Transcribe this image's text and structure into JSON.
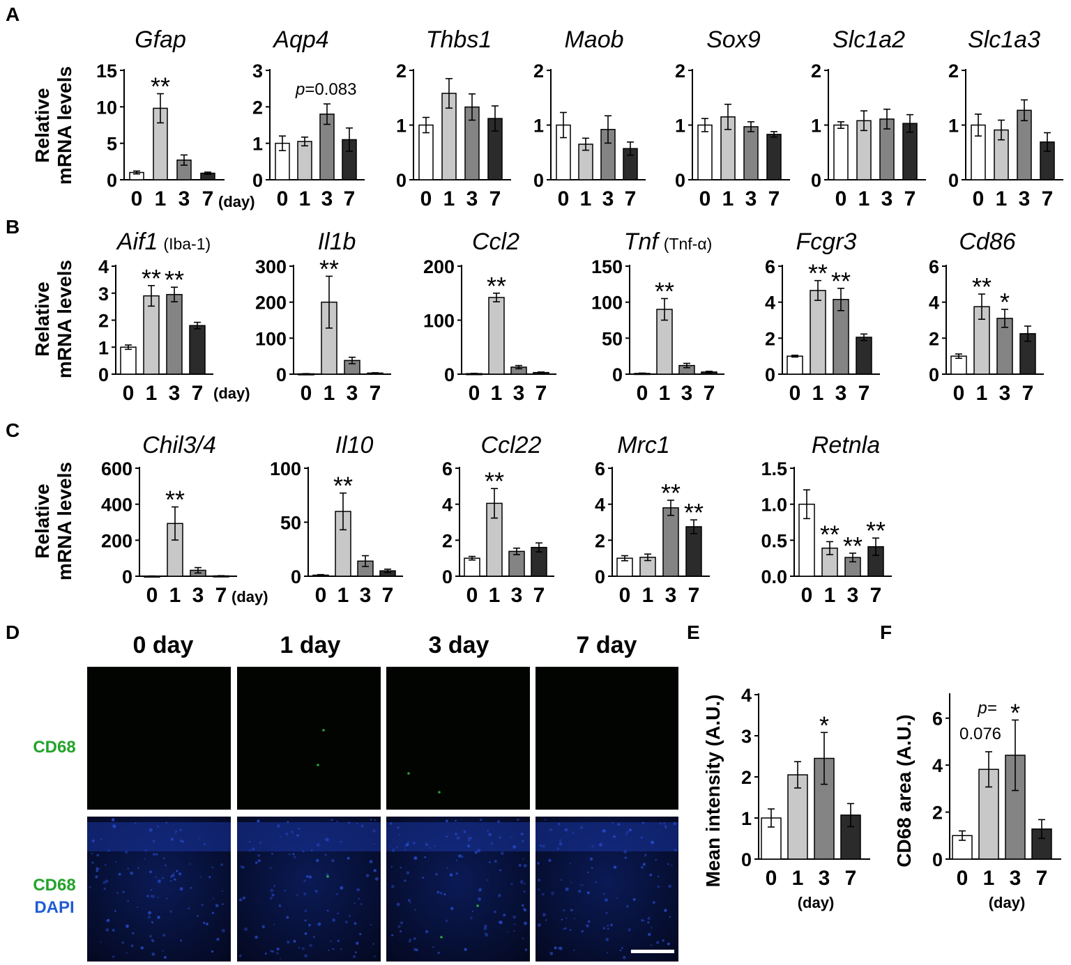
{
  "figure": {
    "panel_letters": [
      "A",
      "B",
      "C",
      "D",
      "E",
      "F"
    ],
    "relative_label": [
      "Relative",
      "mRNA levels"
    ],
    "day_unit": "(day)",
    "bar_colors": [
      "#ffffff",
      "#c8c8c8",
      "#848484",
      "#2b2b2b"
    ]
  },
  "micrographs": {
    "columns": [
      "0 day",
      "1 day",
      "3 day",
      "7 day"
    ],
    "row_top_label": "CD68",
    "row_bottom_label_1": "CD68",
    "row_bottom_label_2": "DAPI",
    "green_color": "#22a32a",
    "blue_color": "#1f5bd8"
  },
  "chart_data": [
    {
      "panel": "A",
      "title": "Gfap",
      "type": "bar",
      "categories": [
        "0",
        "1",
        "3",
        "7"
      ],
      "values": [
        1.0,
        9.8,
        2.7,
        0.9
      ],
      "errors": [
        0.2,
        2.0,
        0.7,
        0.15
      ],
      "ylim": [
        0,
        15
      ],
      "yticks": [
        0,
        5,
        10,
        15
      ],
      "annotations": [
        "",
        "**",
        "",
        ""
      ]
    },
    {
      "panel": "A",
      "title": "Aqp4",
      "type": "bar",
      "categories": [
        "0",
        "1",
        "3",
        "7"
      ],
      "values": [
        1.0,
        1.05,
        1.8,
        1.1
      ],
      "errors": [
        0.2,
        0.12,
        0.28,
        0.32
      ],
      "ylim": [
        0,
        3
      ],
      "yticks": [
        0,
        1,
        2,
        3
      ],
      "annotations": [
        "",
        "",
        "",
        ""
      ],
      "p_value": {
        "label": "p",
        "text": "=0.083"
      }
    },
    {
      "panel": "A",
      "title": "Thbs1",
      "type": "bar",
      "categories": [
        "0",
        "1",
        "3",
        "7"
      ],
      "values": [
        1.0,
        1.58,
        1.33,
        1.12
      ],
      "errors": [
        0.14,
        0.27,
        0.24,
        0.23
      ],
      "ylim": [
        0,
        2
      ],
      "yticks": [
        0,
        1,
        2
      ],
      "annotations": [
        "",
        "",
        "",
        ""
      ]
    },
    {
      "panel": "A",
      "title": "Maob",
      "type": "bar",
      "categories": [
        "0",
        "1",
        "3",
        "7"
      ],
      "values": [
        1.0,
        0.65,
        0.92,
        0.57
      ],
      "errors": [
        0.23,
        0.11,
        0.25,
        0.12
      ],
      "ylim": [
        0,
        2
      ],
      "yticks": [
        0,
        1,
        2
      ],
      "annotations": [
        "",
        "",
        "",
        ""
      ]
    },
    {
      "panel": "A",
      "title": "Sox9",
      "type": "bar",
      "categories": [
        "0",
        "1",
        "3",
        "7"
      ],
      "values": [
        1.0,
        1.15,
        0.97,
        0.83
      ],
      "errors": [
        0.12,
        0.23,
        0.09,
        0.05
      ],
      "ylim": [
        0,
        2
      ],
      "yticks": [
        0,
        1,
        2
      ],
      "annotations": [
        "",
        "",
        "",
        ""
      ]
    },
    {
      "panel": "A",
      "title": "Slc1a2",
      "type": "bar",
      "categories": [
        "0",
        "1",
        "3",
        "7"
      ],
      "values": [
        1.0,
        1.08,
        1.11,
        1.03
      ],
      "errors": [
        0.06,
        0.18,
        0.18,
        0.16
      ],
      "ylim": [
        0,
        2
      ],
      "yticks": [
        0,
        1,
        2
      ],
      "annotations": [
        "",
        "",
        "",
        ""
      ]
    },
    {
      "panel": "A",
      "title": "Slc1a3",
      "type": "bar",
      "categories": [
        "0",
        "1",
        "3",
        "7"
      ],
      "values": [
        1.0,
        0.91,
        1.27,
        0.69
      ],
      "errors": [
        0.2,
        0.18,
        0.19,
        0.17
      ],
      "ylim": [
        0,
        2
      ],
      "yticks": [
        0,
        1,
        2
      ],
      "annotations": [
        "",
        "",
        "",
        ""
      ]
    },
    {
      "panel": "B",
      "title": "Aif1",
      "title_note": "(Iba-1)",
      "type": "bar",
      "categories": [
        "0",
        "1",
        "3",
        "7"
      ],
      "values": [
        1.0,
        2.9,
        2.95,
        1.8
      ],
      "errors": [
        0.08,
        0.38,
        0.27,
        0.12
      ],
      "ylim": [
        0,
        4
      ],
      "yticks": [
        0,
        1,
        2,
        3,
        4
      ],
      "annotations": [
        "",
        "**",
        "**",
        ""
      ]
    },
    {
      "panel": "B",
      "title": "Il1b",
      "type": "bar",
      "categories": [
        "0",
        "1",
        "3",
        "7"
      ],
      "values": [
        1,
        200,
        38,
        3
      ],
      "errors": [
        0.5,
        72,
        9,
        1
      ],
      "ylim": [
        0,
        300
      ],
      "yticks": [
        0,
        100,
        200,
        300
      ],
      "annotations": [
        "",
        "**",
        "",
        ""
      ]
    },
    {
      "panel": "B",
      "title": "Ccl2",
      "type": "bar",
      "categories": [
        "0",
        "1",
        "3",
        "7"
      ],
      "values": [
        1,
        142,
        13,
        3
      ],
      "errors": [
        0.5,
        8,
        3,
        1
      ],
      "ylim": [
        0,
        200
      ],
      "yticks": [
        0,
        100,
        200
      ],
      "annotations": [
        "",
        "**",
        "",
        ""
      ]
    },
    {
      "panel": "B",
      "title": "Tnf",
      "title_note": "(Tnf-α)",
      "type": "bar",
      "categories": [
        "0",
        "1",
        "3",
        "7"
      ],
      "values": [
        1,
        90,
        12,
        3
      ],
      "errors": [
        0.5,
        15,
        3,
        1
      ],
      "ylim": [
        0,
        150
      ],
      "yticks": [
        0,
        50,
        100,
        150
      ],
      "annotations": [
        "",
        "**",
        "",
        ""
      ]
    },
    {
      "panel": "B",
      "title": "Fcgr3",
      "type": "bar",
      "categories": [
        "0",
        "1",
        "3",
        "7"
      ],
      "values": [
        1.0,
        4.65,
        4.15,
        2.05
      ],
      "errors": [
        0.05,
        0.55,
        0.62,
        0.18
      ],
      "ylim": [
        0,
        6
      ],
      "yticks": [
        0,
        2,
        4,
        6
      ],
      "annotations": [
        "",
        "**",
        "**",
        ""
      ]
    },
    {
      "panel": "B",
      "title": "Cd86",
      "type": "bar",
      "categories": [
        "0",
        "1",
        "3",
        "7"
      ],
      "values": [
        1.0,
        3.75,
        3.1,
        2.25
      ],
      "errors": [
        0.12,
        0.7,
        0.5,
        0.42
      ],
      "ylim": [
        0,
        6
      ],
      "yticks": [
        0,
        2,
        4,
        6
      ],
      "annotations": [
        "",
        "**",
        "*",
        ""
      ]
    },
    {
      "panel": "C",
      "title": "Chil3/4",
      "type": "bar",
      "categories": [
        "0",
        "1",
        "3",
        "7"
      ],
      "values": [
        1,
        293,
        33,
        2
      ],
      "errors": [
        0.5,
        92,
        15,
        1
      ],
      "ylim": [
        0,
        600
      ],
      "yticks": [
        0,
        200,
        400,
        600
      ],
      "annotations": [
        "",
        "**",
        "",
        ""
      ]
    },
    {
      "panel": "C",
      "title": "Il10",
      "type": "bar",
      "categories": [
        "0",
        "1",
        "3",
        "7"
      ],
      "values": [
        1,
        60,
        14,
        5
      ],
      "errors": [
        0.5,
        17,
        5,
        1.5
      ],
      "ylim": [
        0,
        100
      ],
      "yticks": [
        0,
        50,
        100
      ],
      "annotations": [
        "",
        "**",
        "",
        ""
      ]
    },
    {
      "panel": "C",
      "title": "Ccl22",
      "type": "bar",
      "categories": [
        "0",
        "1",
        "3",
        "7"
      ],
      "values": [
        1.0,
        4.05,
        1.38,
        1.6
      ],
      "errors": [
        0.1,
        0.82,
        0.18,
        0.25
      ],
      "ylim": [
        0,
        6
      ],
      "yticks": [
        0,
        2,
        4,
        6
      ],
      "annotations": [
        "",
        "**",
        "",
        ""
      ]
    },
    {
      "panel": "C",
      "title": "Mrc1",
      "type": "bar",
      "categories": [
        "0",
        "1",
        "3",
        "7"
      ],
      "values": [
        1.0,
        1.05,
        3.8,
        2.75
      ],
      "errors": [
        0.14,
        0.18,
        0.42,
        0.38
      ],
      "ylim": [
        0,
        6
      ],
      "yticks": [
        0,
        2,
        4,
        6
      ],
      "annotations": [
        "",
        "",
        "**",
        "**"
      ]
    },
    {
      "panel": "C",
      "title": "Retnla",
      "type": "bar",
      "categories": [
        "0",
        "1",
        "3",
        "7"
      ],
      "values": [
        1.0,
        0.39,
        0.26,
        0.41
      ],
      "errors": [
        0.2,
        0.09,
        0.06,
        0.12
      ],
      "ylim": [
        0,
        1.5
      ],
      "yticks": [
        "0.0",
        "0.5",
        "1.0",
        "1.5"
      ],
      "annotations": [
        "",
        "**",
        "**",
        "**"
      ]
    },
    {
      "panel": "E",
      "type": "bar",
      "ylabel": "Mean intensity (A.U.)",
      "xlabel": "(day)",
      "categories": [
        "0",
        "1",
        "3",
        "7"
      ],
      "values": [
        1.0,
        2.05,
        2.45,
        1.07
      ],
      "errors": [
        0.22,
        0.32,
        0.63,
        0.28
      ],
      "ylim": [
        0,
        4
      ],
      "yticks": [
        0,
        1,
        2,
        3,
        4
      ],
      "annotations": [
        "",
        "",
        "*",
        ""
      ]
    },
    {
      "panel": "F",
      "type": "bar",
      "ylabel": "CD68 area (A.U.)",
      "xlabel": "(day)",
      "categories": [
        "0",
        "1",
        "3",
        "7"
      ],
      "values": [
        1.0,
        3.82,
        4.42,
        1.28
      ],
      "errors": [
        0.2,
        0.75,
        1.5,
        0.4
      ],
      "ylim": [
        0,
        7
      ],
      "yticks": [
        0,
        2,
        4,
        6
      ],
      "annotations": [
        "",
        "",
        "*",
        ""
      ],
      "p_value": {
        "label": "p=",
        "text": "0.076"
      }
    }
  ]
}
